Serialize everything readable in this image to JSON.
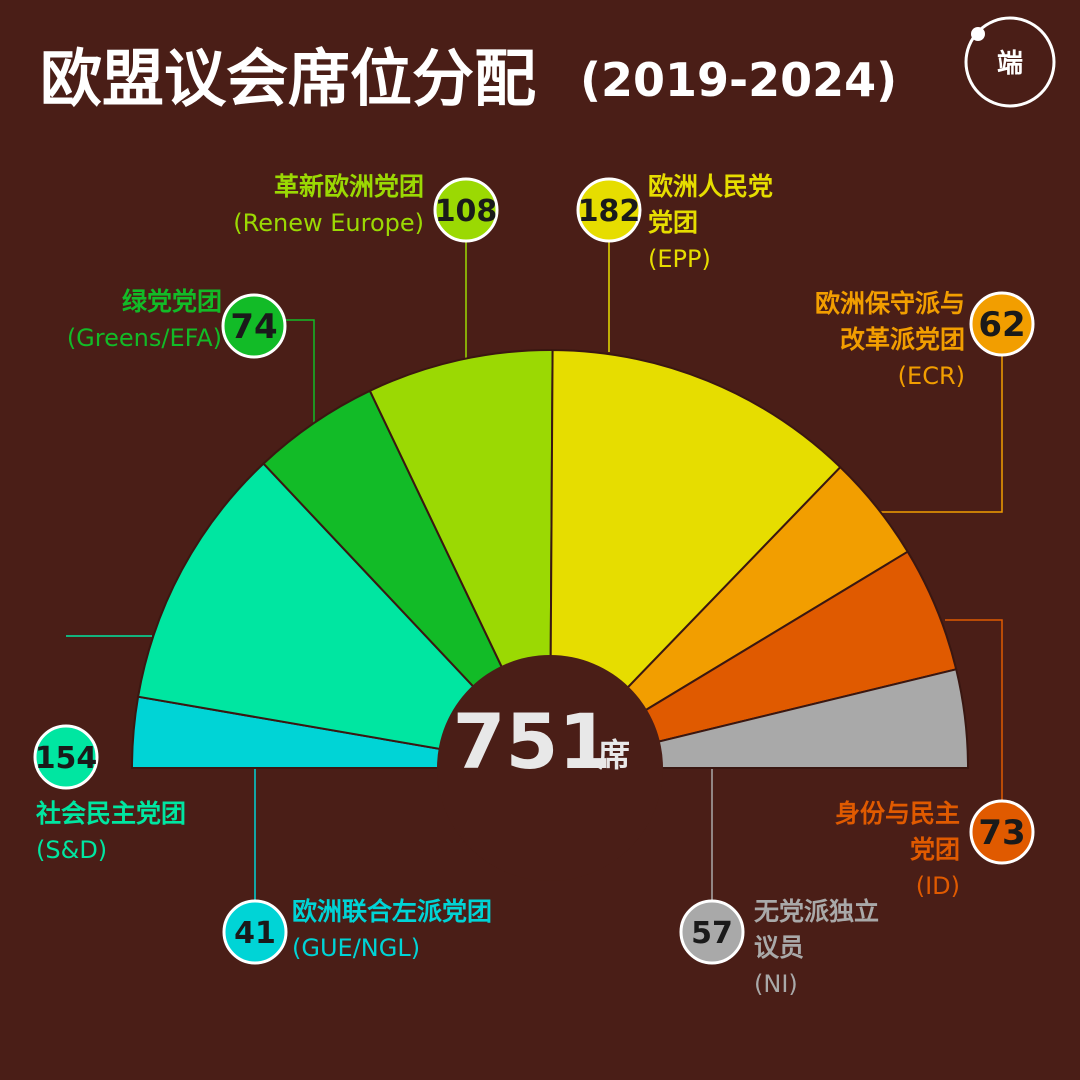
{
  "title": "欧盟议会席位分配",
  "title_period": "(2019-2024)",
  "logo_text": "端",
  "total": {
    "value": "751",
    "unit": "席"
  },
  "colors": {
    "background": "#4a1e17",
    "GUE/NGL": "#00d4d6",
    "S&D": "#00e6a1",
    "Greens/EFA": "#12bb27",
    "Renew Europe": "#9bd903",
    "EPP": "#e6dd00",
    "ECR": "#f29e00",
    "ID": "#e05a00",
    "NI": "#a9a9a9"
  },
  "chart_data": {
    "type": "pie",
    "subtype": "semicircle-parliament",
    "title": "欧盟议会席位分配(2019-2024)",
    "total_seats": 751,
    "categories": [
      "GUE/NGL",
      "S&D",
      "Greens/EFA",
      "Renew Europe",
      "EPP",
      "ECR",
      "ID",
      "NI"
    ],
    "values": [
      41,
      154,
      74,
      108,
      182,
      62,
      73,
      57
    ],
    "parties": [
      {
        "key": "GUE/NGL",
        "seats": 41,
        "name_lines": [
          "欧洲联合左派党团",
          "(GUE/NGL)"
        ]
      },
      {
        "key": "S&D",
        "seats": 154,
        "name_lines": [
          "社会民主党团",
          "(S&D)"
        ]
      },
      {
        "key": "Greens/EFA",
        "seats": 74,
        "name_lines": [
          "绿党党团",
          "(Greens/EFA)"
        ]
      },
      {
        "key": "Renew Europe",
        "seats": 108,
        "name_lines": [
          "革新欧洲党团",
          "(Renew Europe)"
        ]
      },
      {
        "key": "EPP",
        "seats": 182,
        "name_lines": [
          "欧洲人民党",
          "党团",
          "(EPP)"
        ]
      },
      {
        "key": "ECR",
        "seats": 62,
        "name_lines": [
          "欧洲保守派与",
          "改革派党团",
          "(ECR)"
        ]
      },
      {
        "key": "ID",
        "seats": 73,
        "name_lines": [
          "身份与民主",
          "党团",
          "(ID)"
        ]
      },
      {
        "key": "NI",
        "seats": 57,
        "name_lines": [
          "无党派独立",
          "议员",
          "(NI)"
        ]
      }
    ]
  }
}
